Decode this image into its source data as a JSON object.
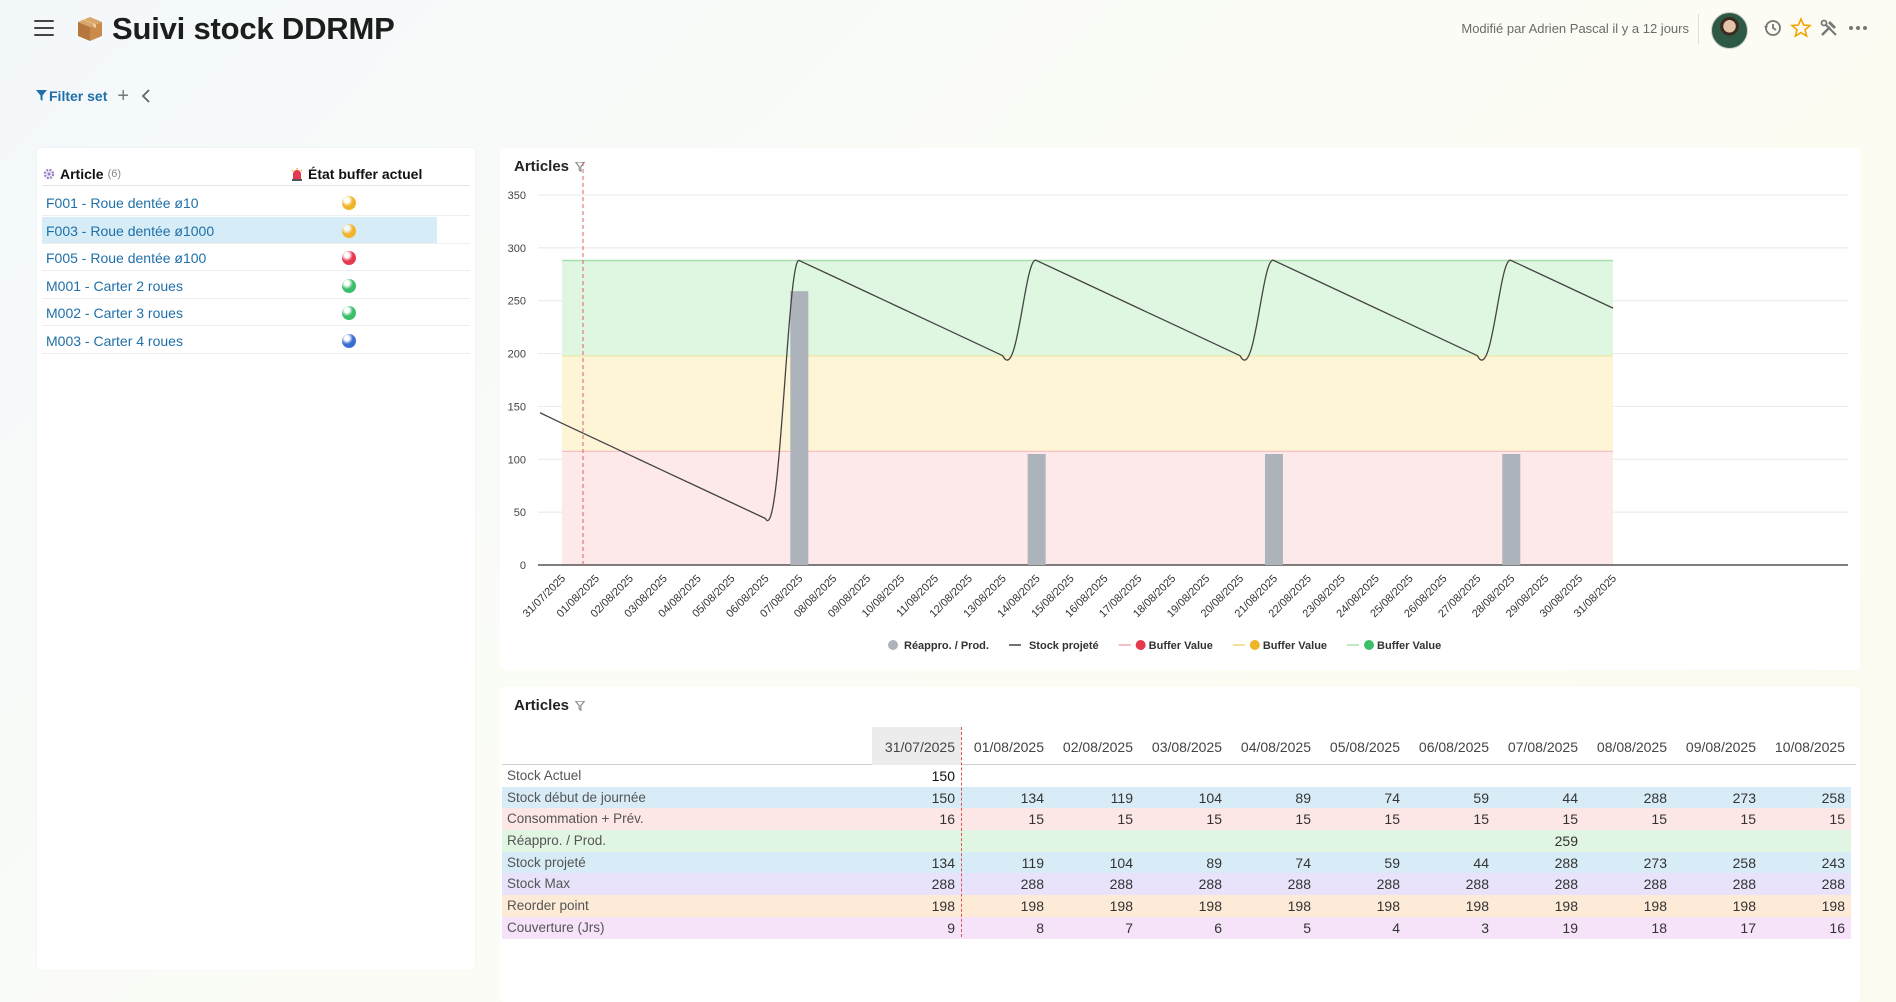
{
  "header": {
    "title": "Suivi stock DDRMP",
    "modified": "Modifié par Adrien Pascal il y a 12 jours"
  },
  "filter": {
    "label": "Filter set"
  },
  "articles": {
    "col_article": "Article",
    "col_count": "(6)",
    "col_state": "État buffer actuel",
    "items": [
      {
        "name": "F001 - Roue dentée ø10",
        "state_color": "#f0b429"
      },
      {
        "name": "F003 - Roue dentée ø1000",
        "state_color": "#f0b429"
      },
      {
        "name": "F005 - Roue dentée ø100",
        "state_color": "#e53950"
      },
      {
        "name": "M001 - Carter 2 roues",
        "state_color": "#3cbf6a"
      },
      {
        "name": "M002 - Carter 3 roues",
        "state_color": "#3cbf6a"
      },
      {
        "name": "M003 - Carter 4 roues",
        "state_color": "#3a6fd1"
      }
    ],
    "selected_index": 1
  },
  "chart_panel": {
    "title": "Articles"
  },
  "chart_data": {
    "type": "line",
    "x": [
      "31/07/2025",
      "01/08/2025",
      "02/08/2025",
      "03/08/2025",
      "04/08/2025",
      "05/08/2025",
      "06/08/2025",
      "07/08/2025",
      "08/08/2025",
      "09/08/2025",
      "10/08/2025",
      "11/08/2025",
      "12/08/2025",
      "13/08/2025",
      "14/08/2025",
      "15/08/2025",
      "16/08/2025",
      "17/08/2025",
      "18/08/2025",
      "19/08/2025",
      "20/08/2025",
      "21/08/2025",
      "22/08/2025",
      "23/08/2025",
      "24/08/2025",
      "25/08/2025",
      "26/08/2025",
      "27/08/2025",
      "28/08/2025",
      "29/08/2025",
      "30/08/2025",
      "31/08/2025"
    ],
    "yticks": [
      0,
      50,
      100,
      150,
      200,
      250,
      300,
      350
    ],
    "ylim": [
      0,
      350
    ],
    "bands": [
      {
        "from": 0,
        "to": 108,
        "color": "#fde9ea",
        "line": "#f2a7ad"
      },
      {
        "from": 108,
        "to": 198,
        "color": "#fdf5d6",
        "line": "#f5d77a"
      },
      {
        "from": 198,
        "to": 288,
        "color": "#dff7e1",
        "line": "#a8e0ad"
      }
    ],
    "series": [
      {
        "name": "Réappro. / Prod.",
        "type": "bar",
        "color": "#adb3ba",
        "values": [
          0,
          0,
          0,
          0,
          0,
          0,
          0,
          259,
          0,
          0,
          0,
          0,
          0,
          0,
          105,
          0,
          0,
          0,
          0,
          0,
          0,
          105,
          0,
          0,
          0,
          0,
          0,
          0,
          105,
          0,
          0,
          0
        ]
      },
      {
        "name": "Stock projeté",
        "type": "line",
        "color": "#444444",
        "values": [
          134,
          119,
          104,
          89,
          74,
          59,
          44,
          288,
          273,
          258,
          243,
          228,
          213,
          198,
          288,
          273,
          258,
          243,
          228,
          213,
          198,
          288,
          273,
          258,
          243,
          228,
          213,
          198,
          288,
          273,
          258,
          243
        ]
      }
    ],
    "legend": [
      {
        "label": "Réappro. / Prod.",
        "kind": "dot",
        "color": "#adb3ba"
      },
      {
        "label": "Stock projeté",
        "kind": "line",
        "color": "#444444"
      },
      {
        "label": "Buffer Value",
        "kind": "line-dot",
        "color": "#f2a7ad",
        "dot": "#e53950"
      },
      {
        "label": "Buffer Value",
        "kind": "line-dot",
        "color": "#f5d77a",
        "dot": "#f0b429"
      },
      {
        "label": "Buffer Value",
        "kind": "line-dot",
        "color": "#a8e0ad",
        "dot": "#3cbf6a"
      }
    ]
  },
  "table_panel": {
    "title": "Articles",
    "dates": [
      "31/07/2025",
      "01/08/2025",
      "02/08/2025",
      "03/08/2025",
      "04/08/2025",
      "05/08/2025",
      "06/08/2025",
      "07/08/2025",
      "08/08/2025",
      "09/08/2025",
      "10/08/2025"
    ],
    "rows": [
      {
        "label": "Stock Actuel",
        "bg": "#ffffff",
        "values": [
          "150",
          "",
          "",
          "",
          "",
          "",
          "",
          "",
          "",
          "",
          ""
        ]
      },
      {
        "label": "Stock début de journée",
        "bg": "#d8ecf7",
        "values": [
          "150",
          "134",
          "119",
          "104",
          "89",
          "74",
          "59",
          "44",
          "288",
          "273",
          "258"
        ]
      },
      {
        "label": "Consommation + Prév.",
        "bg": "#fde6e6",
        "values": [
          "16",
          "15",
          "15",
          "15",
          "15",
          "15",
          "15",
          "15",
          "15",
          "15",
          "15"
        ]
      },
      {
        "label": "Réappro. / Prod.",
        "bg": "#e1f5e3",
        "values": [
          "",
          "",
          "",
          "",
          "",
          "",
          "",
          "259",
          "",
          "",
          ""
        ]
      },
      {
        "label": "Stock projeté",
        "bg": "#d8ecf7",
        "values": [
          "134",
          "119",
          "104",
          "89",
          "74",
          "59",
          "44",
          "288",
          "273",
          "258",
          "243"
        ]
      },
      {
        "label": "Stock Max",
        "bg": "#e8e3fa",
        "values": [
          "288",
          "288",
          "288",
          "288",
          "288",
          "288",
          "288",
          "288",
          "288",
          "288",
          "288"
        ]
      },
      {
        "label": "Reorder point",
        "bg": "#fdebd8",
        "values": [
          "198",
          "198",
          "198",
          "198",
          "198",
          "198",
          "198",
          "198",
          "198",
          "198",
          "198"
        ]
      },
      {
        "label": "Couverture (Jrs)",
        "bg": "#f6e3fa",
        "values": [
          "9",
          "8",
          "7",
          "6",
          "5",
          "4",
          "3",
          "19",
          "18",
          "17",
          "16"
        ]
      }
    ]
  }
}
